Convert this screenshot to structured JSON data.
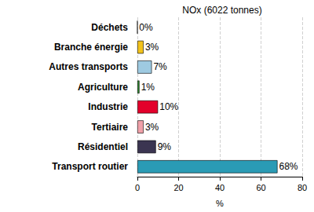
{
  "chart_data": {
    "type": "bar",
    "title": "NOx (6022 tonnes)",
    "orientation": "horizontal",
    "categories": [
      "Déchets",
      "Branche énergie",
      "Autres transports",
      "Agriculture",
      "Industrie",
      "Tertiaire",
      "Résidentiel",
      "Transport routier"
    ],
    "values": [
      0,
      3,
      7,
      1,
      10,
      3,
      9,
      68
    ],
    "value_labels": [
      "0%",
      "3%",
      "7%",
      "1%",
      "10%",
      "3%",
      "9%",
      "68%"
    ],
    "colors": [
      "#808080",
      "#f2c21b",
      "#9ecae1",
      "#2e8b2e",
      "#e3002b",
      "#f0a0a8",
      "#3b3551",
      "#2a9bb5"
    ],
    "xlabel": "%",
    "xlim": [
      0,
      80
    ],
    "xticks": [
      0,
      20,
      40,
      60,
      80
    ],
    "grid": true,
    "data_labels": true
  }
}
